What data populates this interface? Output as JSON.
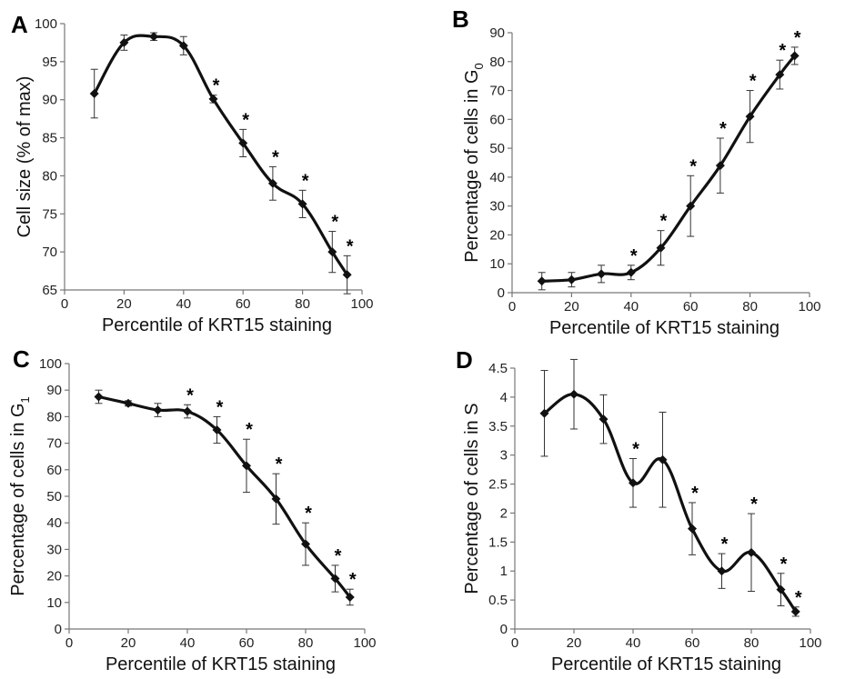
{
  "chart_data": [
    {
      "panel": "A",
      "type": "line",
      "xlabel": "Percentile of KRT15 staining",
      "ylabel": "Cell size (% of max)",
      "ylabel_sub": "",
      "xlim": [
        0,
        100
      ],
      "ylim": [
        65,
        100
      ],
      "xticks": [
        0,
        20,
        40,
        60,
        80,
        100
      ],
      "yticks": [
        65,
        70,
        75,
        80,
        85,
        90,
        95,
        100
      ],
      "x": [
        10,
        20,
        30,
        40,
        50,
        60,
        70,
        80,
        90,
        95
      ],
      "y": [
        90.8,
        97.5,
        98.3,
        97.1,
        90.1,
        84.3,
        79.0,
        76.3,
        70.0,
        67.0
      ],
      "error": [
        3.2,
        1.0,
        0.5,
        1.2,
        0.5,
        1.8,
        2.2,
        1.8,
        2.7,
        2.5
      ],
      "significant": [
        false,
        false,
        false,
        false,
        true,
        true,
        true,
        true,
        true,
        true
      ],
      "significance_marker": "*"
    },
    {
      "panel": "B",
      "type": "line",
      "xlabel": "Percentile of KRT15 staining",
      "ylabel": "Percentage of cells in G",
      "ylabel_sub": "0",
      "xlim": [
        0,
        100
      ],
      "ylim": [
        0,
        90
      ],
      "xticks": [
        0,
        20,
        40,
        60,
        80,
        100
      ],
      "yticks": [
        0,
        10,
        20,
        30,
        40,
        50,
        60,
        70,
        80,
        90
      ],
      "x": [
        10,
        20,
        30,
        40,
        50,
        60,
        70,
        80,
        90,
        95
      ],
      "y": [
        4,
        4.5,
        6.5,
        7,
        15.5,
        30,
        44,
        61,
        75.5,
        82
      ],
      "error": [
        3,
        2.5,
        3,
        2.5,
        6,
        10.5,
        9.5,
        9,
        5,
        3
      ],
      "significant": [
        false,
        false,
        false,
        true,
        true,
        true,
        true,
        true,
        true,
        true
      ],
      "significance_marker": "*"
    },
    {
      "panel": "C",
      "type": "line",
      "xlabel": "Percentile of KRT15 staining",
      "ylabel": "Percentage of cells in G",
      "ylabel_sub": "1",
      "xlim": [
        0,
        100
      ],
      "ylim": [
        0,
        100
      ],
      "xticks": [
        0,
        20,
        40,
        60,
        80,
        100
      ],
      "yticks": [
        0,
        10,
        20,
        30,
        40,
        50,
        60,
        70,
        80,
        90,
        100
      ],
      "x": [
        10,
        20,
        30,
        40,
        50,
        60,
        70,
        80,
        90,
        95
      ],
      "y": [
        87.5,
        85,
        82.5,
        82,
        75,
        61.5,
        49,
        32,
        19,
        12
      ],
      "error": [
        2.5,
        1,
        2.5,
        2.5,
        5,
        10,
        9.5,
        8,
        5,
        3
      ],
      "significant": [
        false,
        false,
        false,
        true,
        true,
        true,
        true,
        true,
        true,
        true
      ],
      "significance_marker": "*"
    },
    {
      "panel": "D",
      "type": "line",
      "xlabel": "Percentile of KRT15 staining",
      "ylabel": "Percentage of cells in S",
      "ylabel_sub": "",
      "xlim": [
        0,
        100
      ],
      "ylim": [
        0,
        4.5
      ],
      "xticks": [
        0,
        20,
        40,
        60,
        80,
        100
      ],
      "yticks": [
        0,
        0.5,
        1,
        1.5,
        2,
        2.5,
        3,
        3.5,
        4,
        4.5
      ],
      "x": [
        10,
        20,
        30,
        40,
        50,
        60,
        70,
        80,
        90,
        95
      ],
      "y": [
        3.72,
        4.05,
        3.62,
        2.52,
        2.92,
        1.73,
        1.0,
        1.32,
        0.68,
        0.3
      ],
      "error": [
        0.74,
        0.6,
        0.42,
        0.42,
        0.82,
        0.45,
        0.3,
        0.67,
        0.28,
        0.08
      ],
      "significant": [
        false,
        false,
        false,
        true,
        false,
        true,
        true,
        true,
        true,
        true
      ],
      "significance_marker": "*"
    }
  ]
}
